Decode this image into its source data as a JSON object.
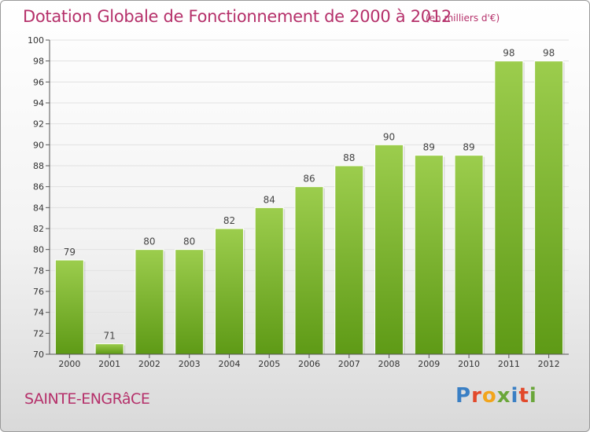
{
  "header": {
    "title": "Dotation Globale de Fonctionnement de 2000 à 2012",
    "subtitle": "(en milliers d'€)"
  },
  "footer": {
    "commune": "SAINTE-ENGRâCE",
    "logo_letters": [
      "P",
      "r",
      "o",
      "x",
      "i",
      "t",
      "i"
    ],
    "logo_colors": [
      "#3a7fc4",
      "#e2492b",
      "#f2a51c",
      "#6aa63a",
      "#3a7fc4",
      "#e2492b",
      "#6aa63a"
    ]
  },
  "chart_data": {
    "type": "bar",
    "categories": [
      "2000",
      "2001",
      "2002",
      "2003",
      "2004",
      "2005",
      "2006",
      "2007",
      "2008",
      "2009",
      "2010",
      "2011",
      "2012"
    ],
    "values": [
      79,
      71,
      80,
      80,
      82,
      84,
      86,
      88,
      90,
      89,
      89,
      98,
      98
    ],
    "data_labels": [
      "79",
      "71",
      "80",
      "80",
      "82",
      "84",
      "86",
      "88",
      "90",
      "89",
      "89",
      "98",
      "98"
    ],
    "ylim": [
      70,
      100
    ],
    "yticks": [
      "70",
      "72",
      "74",
      "76",
      "78",
      "80",
      "82",
      "84",
      "86",
      "88",
      "90",
      "92",
      "94",
      "96",
      "98",
      "100"
    ],
    "grid": true,
    "bar_color_top": "#9ccd4d",
    "bar_color_bottom": "#5e9a16"
  }
}
